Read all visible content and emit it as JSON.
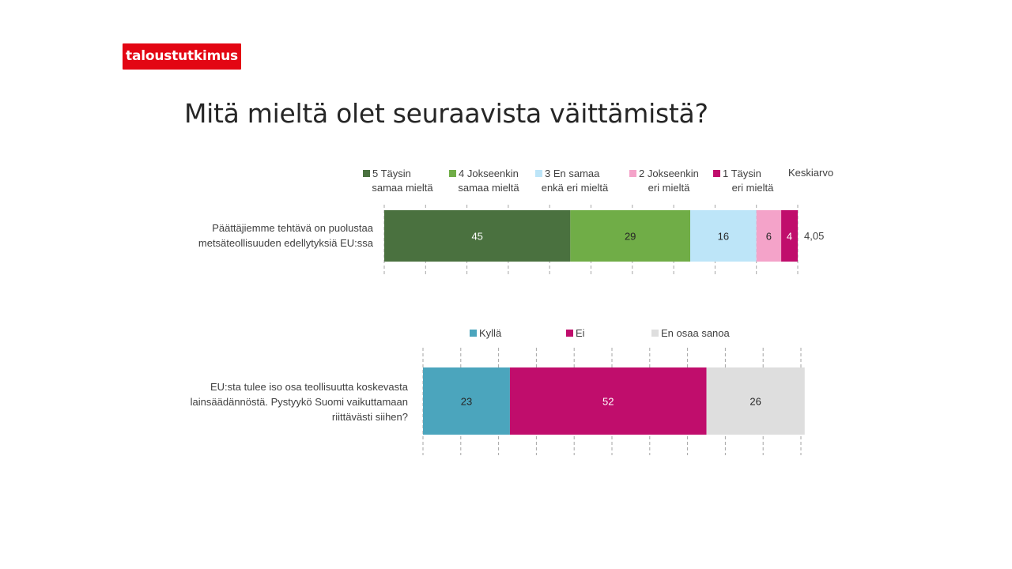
{
  "brand": {
    "logo_text": "taloustutkimus",
    "color": "#e30613"
  },
  "page": {
    "title": "Mitä mieltä olet seuraavista  väittämistä?"
  },
  "chart_data": [
    {
      "type": "bar",
      "orientation": "horizontal",
      "stacked": true,
      "categories": [
        "Päättäjiemme tehtävä on puolustaa\nmetsäteollisuuden edellytyksiä EU:ssa"
      ],
      "series": [
        {
          "name": "5 Täysin\nsamaa mieltä",
          "values": [
            45
          ],
          "color": "#4a713f"
        },
        {
          "name": "4 Jokseenkin\nsamaa mieltä",
          "values": [
            29
          ],
          "color": "#70ad47"
        },
        {
          "name": "3 En samaa\nenkä eri mieltä",
          "values": [
            16
          ],
          "color": "#bde5f8"
        },
        {
          "name": "2 Jokseenkin\neri mieltä",
          "values": [
            6
          ],
          "color": "#f4a3c9"
        },
        {
          "name": "1 Täysin\neri mieltä",
          "values": [
            4
          ],
          "color": "#c00d6c"
        }
      ],
      "mean_header": "Keskiarvo",
      "mean_values": [
        "4,05"
      ],
      "xlim": [
        0,
        100
      ],
      "grid": true,
      "legend": "top"
    },
    {
      "type": "bar",
      "orientation": "horizontal",
      "stacked": true,
      "categories": [
        "EU:sta tulee iso osa teollisuutta koskevasta\nlainsäädännöstä. Pystyykö Suomi vaikuttamaan\nriittävästi siihen?"
      ],
      "series": [
        {
          "name": "Kyllä",
          "values": [
            23
          ],
          "color": "#4ba5bd"
        },
        {
          "name": "Ei",
          "values": [
            52
          ],
          "color": "#c00d6c"
        },
        {
          "name": "En osaa sanoa",
          "values": [
            26
          ],
          "color": "#dedede"
        }
      ],
      "xlim": [
        0,
        100
      ],
      "grid": true,
      "legend": "top"
    }
  ]
}
